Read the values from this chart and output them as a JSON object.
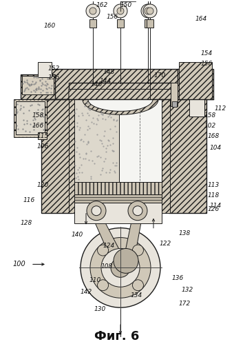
{
  "caption": "Фиг. 6",
  "caption_fontsize": 13,
  "background_color": "#ffffff",
  "fig_width": 3.4,
  "fig_height": 4.99,
  "dpi": 100,
  "line_color": "#1a1a1a",
  "hatch_color": "#333333",
  "fill_light": "#e8e4dc",
  "fill_mid": "#d0c8b8",
  "fill_white": "#f5f5f2",
  "fill_dot": "#c8c0b0"
}
